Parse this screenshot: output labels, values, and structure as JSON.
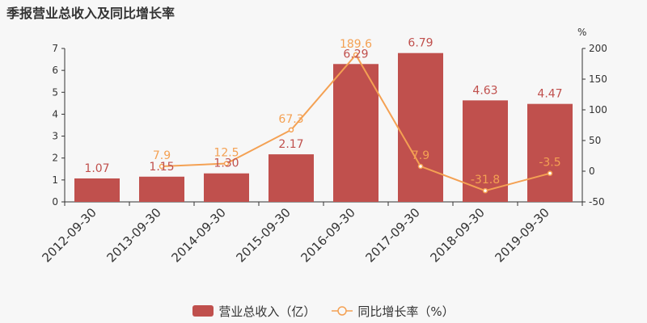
{
  "title": "季报营业总收入及同比增长率",
  "chart_data": {
    "type": "bar+line",
    "categories": [
      "2012-09-30",
      "2013-09-30",
      "2014-09-30",
      "2015-09-30",
      "2016-09-30",
      "2017-09-30",
      "2018-09-30",
      "2019-09-30"
    ],
    "series": [
      {
        "name": "营业总收入（亿）",
        "type": "bar",
        "axis": "left",
        "color": "#c0504d",
        "values": [
          1.07,
          1.15,
          1.3,
          2.17,
          6.29,
          6.79,
          4.63,
          4.47
        ],
        "labels": [
          "1.07",
          "1.15",
          "1.30",
          "2.17",
          "6.29",
          "6.79",
          "4.63",
          "4.47"
        ]
      },
      {
        "name": "同比增长率（%）",
        "type": "line",
        "axis": "right",
        "color": "#f4a153",
        "values": [
          null,
          7.9,
          12.5,
          67.3,
          189.6,
          7.9,
          -31.8,
          -3.5
        ],
        "labels": [
          "",
          "7.9",
          "12.5",
          "67.3",
          "189.6",
          "7.9",
          "-31.8",
          "-3.5"
        ]
      }
    ],
    "y_left": {
      "min": 0,
      "max": 7,
      "ticks": [
        "0",
        "1",
        "2",
        "3",
        "4",
        "5",
        "6",
        "7"
      ]
    },
    "y_right": {
      "min": -50,
      "max": 200,
      "ticks": [
        "-50",
        "0",
        "50",
        "100",
        "150",
        "200"
      ],
      "unit": "%"
    },
    "grid": false,
    "legend_position": "bottom-center"
  }
}
